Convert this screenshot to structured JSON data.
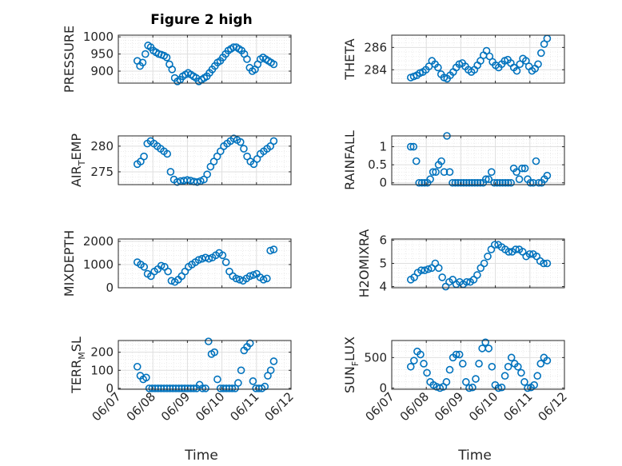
{
  "title": "Figure 2 high",
  "chart_data": [
    {
      "type": "scatter",
      "ylabel": "PRESSURE",
      "yticks": [
        900,
        950,
        1000
      ],
      "ylim": [
        865,
        1005
      ],
      "xlim": [
        0,
        5
      ],
      "grid": true,
      "marker": "circle-open",
      "y": [
        930,
        915,
        925,
        950,
        975,
        970,
        960,
        955,
        950,
        948,
        945,
        940,
        920,
        905,
        880,
        870,
        875,
        885,
        890,
        895,
        890,
        885,
        880,
        870,
        875,
        880,
        885,
        895,
        905,
        915,
        925,
        930,
        940,
        950,
        960,
        965,
        970,
        970,
        965,
        960,
        950,
        935,
        910,
        900,
        905,
        920,
        935,
        940,
        935,
        930,
        925,
        920
      ]
    },
    {
      "type": "scatter",
      "ylabel": "THETA",
      "yticks": [
        284,
        286
      ],
      "ylim": [
        282.8,
        287.1
      ],
      "xlim": [
        0,
        5
      ],
      "grid": true,
      "marker": "circle-open",
      "y": [
        283.3,
        283.4,
        283.5,
        283.7,
        283.8,
        284.0,
        284.3,
        284.8,
        284.5,
        284.2,
        283.6,
        283.3,
        283.2,
        283.5,
        283.8,
        284.2,
        284.5,
        284.6,
        284.3,
        284.0,
        283.8,
        284.0,
        284.4,
        284.8,
        285.3,
        285.7,
        285.2,
        284.7,
        284.4,
        284.2,
        284.5,
        284.8,
        284.9,
        284.6,
        284.2,
        283.9,
        284.5,
        285.0,
        284.8,
        284.3,
        283.9,
        284.1,
        284.5,
        285.5,
        286.3,
        286.8
      ]
    },
    {
      "type": "scatter",
      "ylabel": "AIR_TEMP",
      "yticks": [
        275,
        280
      ],
      "ylim": [
        272.5,
        282
      ],
      "xlim": [
        0,
        5
      ],
      "grid": true,
      "marker": "circle-open",
      "y": [
        276.5,
        277.0,
        278.0,
        280.5,
        281.0,
        280.5,
        280.0,
        279.5,
        279.0,
        278.5,
        275.0,
        273.5,
        273.0,
        273.2,
        273.3,
        273.4,
        273.3,
        273.1,
        273.0,
        273.2,
        273.5,
        274.5,
        276.0,
        277.0,
        278.0,
        279.0,
        280.0,
        280.5,
        281.0,
        281.5,
        281.2,
        280.8,
        279.5,
        278.0,
        277.0,
        276.5,
        277.5,
        278.5,
        279.0,
        279.5,
        280.0,
        281.0
      ]
    },
    {
      "type": "scatter",
      "ylabel": "RAINFALL",
      "yticks": [
        0,
        0.5,
        1
      ],
      "ylim": [
        -0.05,
        1.3
      ],
      "xlim": [
        0,
        5
      ],
      "grid": true,
      "marker": "circle-open",
      "y": [
        1.0,
        1.0,
        0.6,
        0,
        0,
        0,
        0,
        0.1,
        0.3,
        0.3,
        0.5,
        0.6,
        0.3,
        1.3,
        0.3,
        0,
        0,
        0,
        0,
        0,
        0,
        0,
        0,
        0,
        0,
        0,
        0,
        0.1,
        0.1,
        0.3,
        0,
        0,
        0,
        0,
        0,
        0,
        0,
        0.4,
        0.3,
        0.1,
        0.4,
        0.4,
        0.1,
        0,
        0,
        0.6,
        0,
        0,
        0.1,
        0.2
      ]
    },
    {
      "type": "scatter",
      "ylabel": "MIXDEPTH",
      "yticks": [
        0,
        1000,
        2000
      ],
      "ylim": [
        0,
        2100
      ],
      "xlim": [
        0,
        5
      ],
      "grid": true,
      "marker": "circle-open",
      "y": [
        1100,
        1000,
        900,
        600,
        500,
        700,
        800,
        950,
        900,
        700,
        300,
        250,
        350,
        500,
        700,
        900,
        1000,
        1100,
        1200,
        1250,
        1300,
        1250,
        1300,
        1400,
        1500,
        1400,
        1100,
        700,
        500,
        400,
        350,
        300,
        400,
        500,
        550,
        600,
        450,
        350,
        400,
        1600,
        1650
      ]
    },
    {
      "type": "scatter",
      "ylabel": "H2OMIXRA",
      "yticks": [
        4,
        5,
        6
      ],
      "ylim": [
        3.95,
        6.05
      ],
      "xlim": [
        0,
        5
      ],
      "grid": true,
      "marker": "circle-open",
      "y": [
        4.3,
        4.4,
        4.6,
        4.7,
        4.7,
        4.75,
        4.8,
        5.0,
        4.8,
        4.4,
        4.0,
        4.2,
        4.3,
        4.1,
        4.2,
        4.1,
        4.2,
        4.2,
        4.3,
        4.5,
        4.8,
        5.0,
        5.3,
        5.6,
        5.8,
        5.8,
        5.7,
        5.6,
        5.5,
        5.5,
        5.6,
        5.6,
        5.5,
        5.3,
        5.4,
        5.4,
        5.3,
        5.1,
        5.0,
        5.0
      ]
    },
    {
      "type": "scatter",
      "ylabel": "TERR_MSL",
      "yticks": [
        0,
        100,
        200
      ],
      "ylim": [
        -5,
        265
      ],
      "xlim": [
        0,
        5
      ],
      "grid": true,
      "marker": "circle-open",
      "y": [
        120,
        70,
        50,
        60,
        0,
        0,
        0,
        0,
        0,
        0,
        0,
        0,
        0,
        0,
        0,
        0,
        0,
        0,
        0,
        0,
        0,
        20,
        0,
        0,
        260,
        190,
        200,
        50,
        0,
        0,
        0,
        0,
        0,
        0,
        30,
        100,
        210,
        230,
        250,
        40,
        0,
        0,
        0,
        10,
        70,
        100,
        150
      ]
    },
    {
      "type": "scatter",
      "ylabel": "SUN_FLUX",
      "yticks": [
        0,
        500
      ],
      "ylim": [
        -20,
        780
      ],
      "xlim": [
        0,
        5
      ],
      "grid": true,
      "marker": "circle-open",
      "y": [
        350,
        450,
        600,
        550,
        400,
        250,
        100,
        50,
        20,
        0,
        20,
        100,
        300,
        500,
        550,
        550,
        400,
        100,
        0,
        10,
        150,
        400,
        650,
        750,
        650,
        350,
        50,
        0,
        10,
        200,
        350,
        500,
        400,
        350,
        250,
        100,
        0,
        10,
        50,
        200,
        400,
        500,
        450
      ]
    }
  ],
  "xticks": [
    "06/07",
    "06/08",
    "06/09",
    "06/10",
    "06/11",
    "06/12"
  ],
  "xlabel": "Time",
  "colors": {
    "marker": "#0072BD",
    "grid": "#dfdfdf",
    "axis": "#262626"
  }
}
